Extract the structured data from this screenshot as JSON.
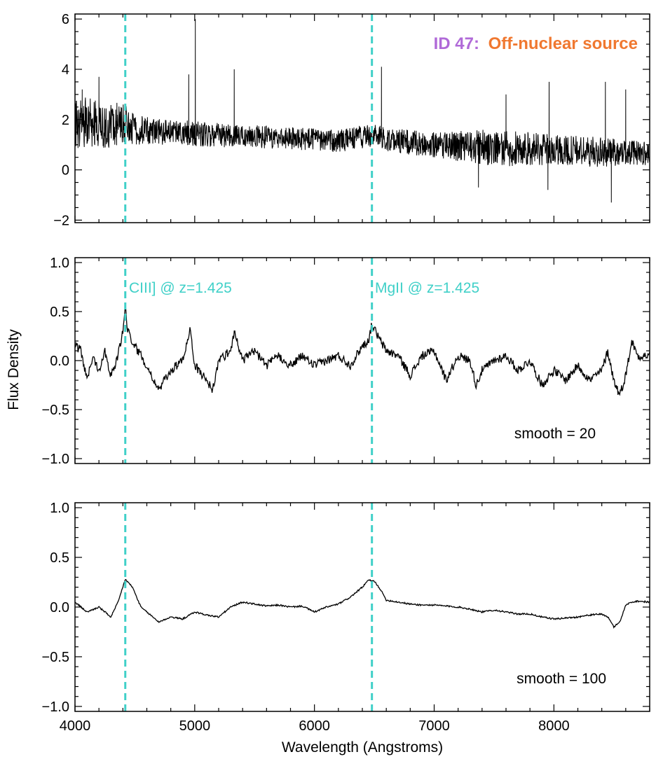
{
  "chart_data": {
    "type": "line",
    "title": {
      "id_part": "ID 47:",
      "label_part": "Off-nuclear source"
    },
    "xlabel": "Wavelength (Angstroms)",
    "ylabel": "Flux Density",
    "xlim": [
      4000,
      8800
    ],
    "x_ticks": [
      "4000",
      "5000",
      "6000",
      "7000",
      "8000"
    ],
    "x_tick_values": [
      4000,
      5000,
      6000,
      7000,
      8000
    ],
    "marker_lines": [
      4420,
      6480
    ],
    "colors": {
      "marker": "#40d0c8",
      "id": "#b06ad8",
      "source": "#f07830",
      "line": "#000000"
    },
    "panels": [
      {
        "name": "raw",
        "ylim": [
          -2.1,
          6.2
        ],
        "y_ticks": [
          "−2",
          "0",
          "2",
          "4",
          "6"
        ],
        "y_tick_values": [
          -2,
          0,
          2,
          4,
          6
        ],
        "annotation": "",
        "series": {
          "x": [
            4000,
            4100,
            4200,
            4300,
            4400,
            4500,
            4600,
            4800,
            5000,
            5200,
            5400,
            5600,
            5800,
            6000,
            6200,
            6400,
            6500,
            6600,
            6800,
            7000,
            7200,
            7400,
            7600,
            7800,
            8000,
            8200,
            8400,
            8600,
            8800
          ],
          "y": [
            1.8,
            1.9,
            1.85,
            1.75,
            1.9,
            1.6,
            1.55,
            1.5,
            1.45,
            1.4,
            1.35,
            1.3,
            1.25,
            1.2,
            1.15,
            1.3,
            1.4,
            1.2,
            1.1,
            1.0,
            0.95,
            0.9,
            0.85,
            0.8,
            0.8,
            0.75,
            0.7,
            0.7,
            0.65
          ],
          "noise": [
            1.0,
            1.0,
            1.0,
            0.9,
            0.8,
            0.6,
            0.55,
            0.5,
            0.5,
            0.5,
            0.45,
            0.45,
            0.45,
            0.45,
            0.45,
            0.45,
            0.45,
            0.45,
            0.5,
            0.5,
            0.6,
            0.7,
            0.7,
            0.7,
            0.6,
            0.6,
            0.6,
            0.5,
            0.5
          ]
        },
        "spikes": [
          {
            "x": 4060,
            "y": 3.2
          },
          {
            "x": 4200,
            "y": 3.7
          },
          {
            "x": 4950,
            "y": 3.8
          },
          {
            "x": 5005,
            "y": 6.0
          },
          {
            "x": 5330,
            "y": 4.0
          },
          {
            "x": 6560,
            "y": 4.1
          },
          {
            "x": 7600,
            "y": 3.0
          },
          {
            "x": 7960,
            "y": 3.5
          },
          {
            "x": 8430,
            "y": 3.5
          },
          {
            "x": 8600,
            "y": 3.2
          },
          {
            "x": 7370,
            "y": -0.7
          },
          {
            "x": 7950,
            "y": -0.8
          },
          {
            "x": 8480,
            "y": -1.3
          }
        ]
      },
      {
        "name": "smooth20",
        "ylim": [
          -1.05,
          1.05
        ],
        "y_ticks": [
          "1.0",
          "0.5",
          "0.0",
          "−0.5",
          "−1.0"
        ],
        "y_tick_values": [
          1.0,
          0.5,
          0.0,
          -0.5,
          -1.0
        ],
        "annotation": "smooth = 20",
        "line_labels": [
          "CIII] @ z=1.425",
          "MgII @ z=1.425"
        ],
        "series": {
          "x": [
            4000,
            4050,
            4100,
            4150,
            4200,
            4250,
            4300,
            4350,
            4400,
            4420,
            4440,
            4500,
            4600,
            4700,
            4800,
            4900,
            4960,
            5000,
            5100,
            5150,
            5200,
            5300,
            5330,
            5400,
            5500,
            5600,
            5700,
            5800,
            5900,
            6000,
            6100,
            6200,
            6300,
            6400,
            6450,
            6480,
            6550,
            6600,
            6700,
            6800,
            6900,
            7000,
            7100,
            7200,
            7300,
            7350,
            7400,
            7500,
            7600,
            7700,
            7800,
            7900,
            8000,
            8100,
            8200,
            8300,
            8400,
            8450,
            8500,
            8550,
            8600,
            8650,
            8700,
            8800
          ],
          "y": [
            0.15,
            0.1,
            -0.2,
            0.05,
            -0.1,
            0.1,
            -0.15,
            0.0,
            0.3,
            0.56,
            0.3,
            0.15,
            -0.05,
            -0.3,
            -0.1,
            0.0,
            0.33,
            -0.05,
            -0.2,
            -0.3,
            0.0,
            0.1,
            0.3,
            0.0,
            0.1,
            -0.05,
            0.05,
            -0.05,
            0.05,
            -0.05,
            0.0,
            0.05,
            -0.05,
            0.15,
            0.2,
            0.37,
            0.2,
            0.1,
            0.05,
            -0.15,
            0.05,
            0.1,
            -0.2,
            0.05,
            0.0,
            -0.25,
            -0.1,
            0.0,
            0.05,
            -0.1,
            0.0,
            -0.25,
            -0.1,
            -0.2,
            -0.05,
            -0.2,
            -0.1,
            0.1,
            -0.2,
            -0.35,
            -0.15,
            0.2,
            0.05,
            0.05
          ]
        }
      },
      {
        "name": "smooth100",
        "ylim": [
          -1.05,
          1.05
        ],
        "y_ticks": [
          "1.0",
          "0.5",
          "0.0",
          "−0.5",
          "−1.0"
        ],
        "y_tick_values": [
          1.0,
          0.5,
          0.0,
          -0.5,
          -1.0
        ],
        "annotation": "smooth = 100",
        "series": {
          "x": [
            4000,
            4100,
            4200,
            4300,
            4360,
            4420,
            4480,
            4550,
            4650,
            4700,
            4800,
            4900,
            5000,
            5100,
            5200,
            5300,
            5400,
            5500,
            5600,
            5700,
            5800,
            5900,
            6000,
            6100,
            6200,
            6300,
            6400,
            6450,
            6500,
            6550,
            6600,
            6700,
            6800,
            6900,
            7000,
            7100,
            7200,
            7300,
            7400,
            7500,
            7600,
            7700,
            7800,
            7900,
            8000,
            8100,
            8200,
            8300,
            8400,
            8450,
            8500,
            8550,
            8600,
            8650,
            8700,
            8800
          ],
          "y": [
            0.05,
            -0.05,
            0.0,
            -0.1,
            0.05,
            0.28,
            0.2,
            0.0,
            -0.1,
            -0.15,
            -0.1,
            -0.12,
            -0.05,
            -0.08,
            -0.1,
            0.0,
            0.05,
            0.03,
            0.01,
            0.02,
            0.0,
            0.01,
            -0.05,
            0.0,
            0.03,
            0.1,
            0.2,
            0.27,
            0.26,
            0.18,
            0.07,
            0.05,
            0.03,
            0.02,
            0.02,
            0.01,
            0.0,
            -0.02,
            -0.05,
            -0.03,
            -0.05,
            -0.07,
            -0.07,
            -0.1,
            -0.12,
            -0.11,
            -0.1,
            -0.08,
            -0.07,
            -0.1,
            -0.2,
            -0.15,
            0.02,
            0.05,
            0.06,
            0.05
          ]
        }
      }
    ]
  }
}
